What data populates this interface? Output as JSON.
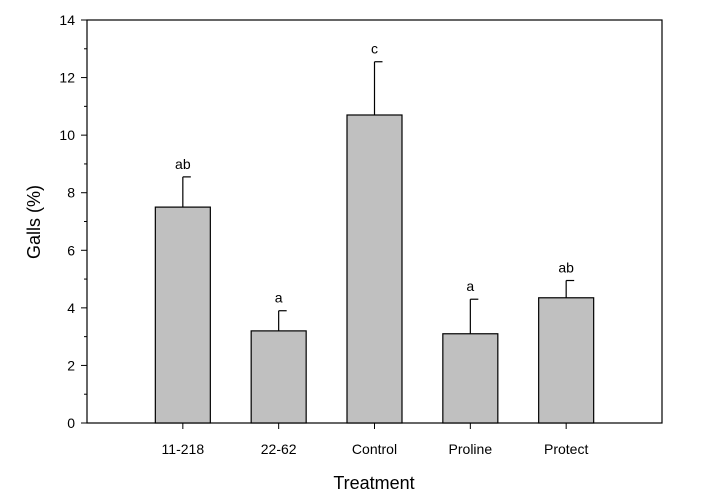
{
  "chart_data": {
    "type": "bar",
    "title": "",
    "xlabel": "Treatment",
    "ylabel": "Galls (%)",
    "ylim": [
      0,
      14
    ],
    "yticks": [
      0,
      2,
      4,
      6,
      8,
      10,
      12,
      14
    ],
    "categories": [
      "11-218",
      "22-62",
      "Control",
      "Proline",
      "Protect"
    ],
    "values": [
      7.5,
      3.2,
      10.7,
      3.1,
      4.35
    ],
    "error_upper": [
      1.05,
      0.7,
      1.85,
      1.2,
      0.6
    ],
    "significance_letters": [
      "ab",
      "a",
      "c",
      "a",
      "ab"
    ],
    "bar_color": "#c0c0c0",
    "grid": false,
    "legend": "none"
  }
}
